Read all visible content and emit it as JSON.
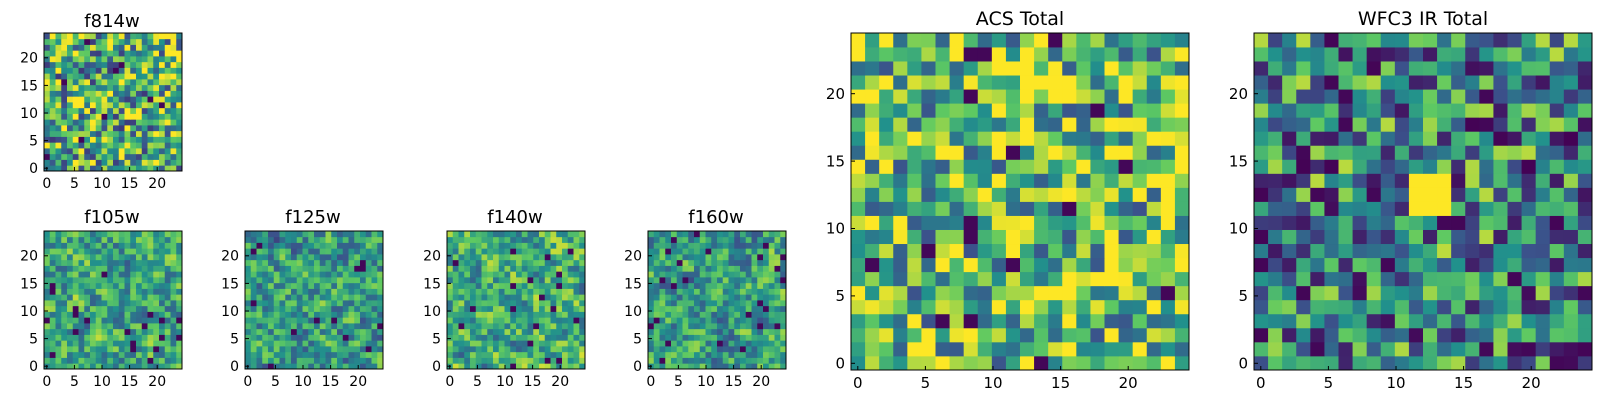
{
  "figure": {
    "colormap": "viridis",
    "colors": [
      "#440154",
      "#3b528b",
      "#21918c",
      "#5ec962",
      "#fde725"
    ]
  },
  "chart_data": [
    {
      "type": "heatmap",
      "title": "f814w",
      "grid": [
        24,
        24
      ],
      "xlim": [
        0,
        24
      ],
      "ylim": [
        0,
        24
      ],
      "xticks": [
        "0",
        "5",
        "10",
        "15",
        "20"
      ],
      "yticks": [
        "0",
        "5",
        "10",
        "15",
        "20"
      ],
      "values": "noise field (not individually labeled)"
    },
    {
      "type": "heatmap",
      "title": "f105w",
      "grid": [
        24,
        24
      ],
      "xlim": [
        0,
        24
      ],
      "ylim": [
        0,
        24
      ],
      "xticks": [
        "0",
        "5",
        "10",
        "15",
        "20"
      ],
      "yticks": [
        "0",
        "5",
        "10",
        "15",
        "20"
      ],
      "values": "noise field (not individually labeled)"
    },
    {
      "type": "heatmap",
      "title": "f125w",
      "grid": [
        24,
        24
      ],
      "xlim": [
        0,
        24
      ],
      "ylim": [
        0,
        24
      ],
      "xticks": [
        "0",
        "5",
        "10",
        "15",
        "20"
      ],
      "yticks": [
        "0",
        "5",
        "10",
        "15",
        "20"
      ],
      "values": "noise field (not individually labeled)"
    },
    {
      "type": "heatmap",
      "title": "f140w",
      "grid": [
        24,
        24
      ],
      "xlim": [
        0,
        24
      ],
      "ylim": [
        0,
        24
      ],
      "xticks": [
        "0",
        "5",
        "10",
        "15",
        "20"
      ],
      "yticks": [
        "0",
        "5",
        "10",
        "15",
        "20"
      ],
      "values": "noise field (not individually labeled)"
    },
    {
      "type": "heatmap",
      "title": "f160w",
      "grid": [
        24,
        24
      ],
      "xlim": [
        0,
        24
      ],
      "ylim": [
        0,
        24
      ],
      "xticks": [
        "0",
        "5",
        "10",
        "15",
        "20"
      ],
      "yticks": [
        "0",
        "5",
        "10",
        "15",
        "20"
      ],
      "values": "noise field (not individually labeled)"
    },
    {
      "type": "heatmap",
      "title": "ACS Total",
      "grid": [
        24,
        24
      ],
      "xlim": [
        0,
        24
      ],
      "ylim": [
        0,
        24
      ],
      "xticks": [
        "0",
        "5",
        "10",
        "15",
        "20"
      ],
      "yticks": [
        "0",
        "5",
        "10",
        "15",
        "20"
      ],
      "values": "noise field (not individually labeled)"
    },
    {
      "type": "heatmap",
      "title": "WFC3 IR Total",
      "grid": [
        24,
        24
      ],
      "xlim": [
        0,
        24
      ],
      "ylim": [
        0,
        24
      ],
      "xticks": [
        "0",
        "5",
        "10",
        "15",
        "20"
      ],
      "yticks": [
        "0",
        "5",
        "10",
        "15",
        "20"
      ],
      "values": "noise field with bright source near x=12, y=12"
    }
  ]
}
